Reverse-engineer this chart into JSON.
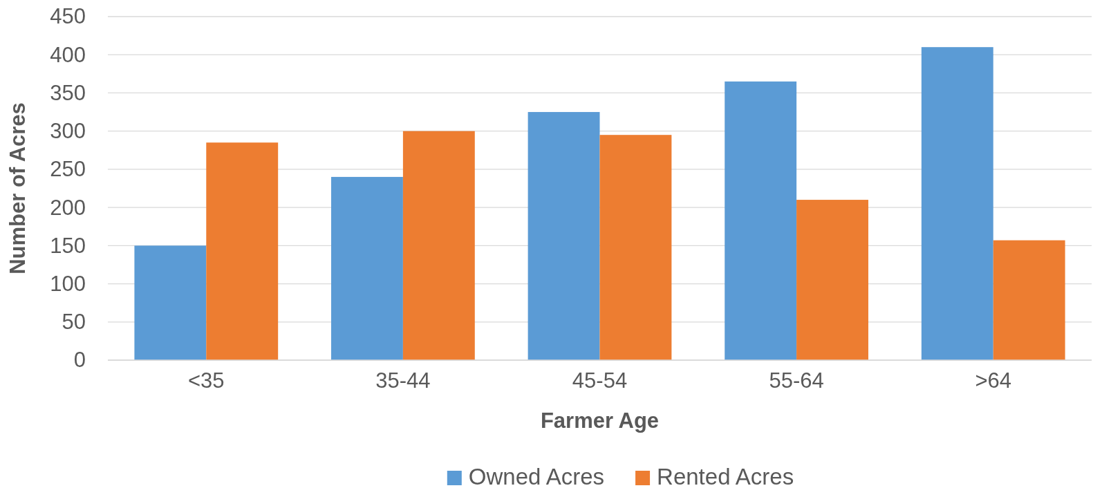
{
  "chart_data": {
    "type": "bar",
    "xlabel": "Farmer Age",
    "ylabel": "Number of Acres",
    "categories": [
      "<35",
      "35-44",
      "45-54",
      "55-64",
      ">64"
    ],
    "series": [
      {
        "name": "Owned Acres",
        "color": "#5b9bd5",
        "values": [
          150,
          240,
          325,
          365,
          410
        ]
      },
      {
        "name": "Rented Acres",
        "color": "#ed7d31",
        "values": [
          285,
          300,
          295,
          210,
          157
        ]
      }
    ],
    "ylim": [
      0,
      450
    ],
    "yticks": [
      0,
      50,
      100,
      150,
      200,
      250,
      300,
      350,
      400,
      450
    ],
    "grid": "y",
    "legend": "bottom"
  }
}
